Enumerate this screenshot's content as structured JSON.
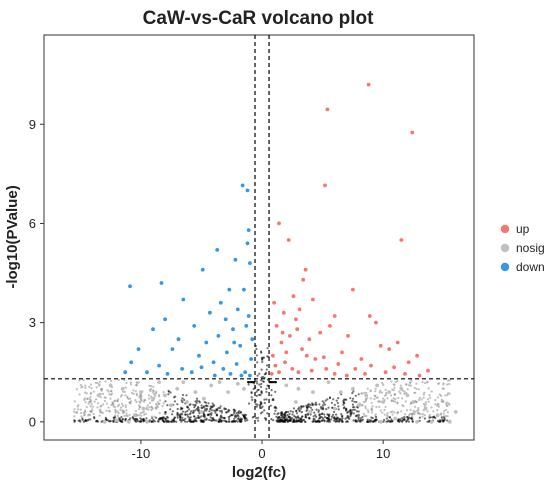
{
  "chart_data": {
    "type": "scatter",
    "title": "CaW-vs-CaR volcano plot",
    "xlabel": "log2(fc)",
    "ylabel": "-log10(PValue)",
    "xlim": [
      -18,
      17.5
    ],
    "ylim": [
      -0.55,
      11.7
    ],
    "xticks": [
      -10,
      0,
      10
    ],
    "yticks": [
      0,
      3,
      6,
      9
    ],
    "grid": false,
    "legend_position": "right",
    "thresholds": {
      "log2fc": [
        -0.58,
        0.58
      ],
      "neg_log10_p": 1.3
    },
    "colors": {
      "up": "#F8766D",
      "nosig": "#C0C0C0",
      "down": "#3399E6",
      "bulk": "#000000"
    },
    "series": [
      {
        "name": "up",
        "color": "#F8766D",
        "points": [
          [
            8.8,
            10.2
          ],
          [
            5.4,
            9.45
          ],
          [
            12.4,
            8.75
          ],
          [
            5.2,
            7.15
          ],
          [
            11.5,
            5.5
          ],
          [
            1.4,
            6.0
          ],
          [
            2.2,
            5.5
          ],
          [
            3.6,
            4.6
          ],
          [
            3.4,
            4.3
          ],
          [
            7.5,
            4.0
          ],
          [
            2.6,
            3.8
          ],
          [
            4.2,
            3.7
          ],
          [
            8.9,
            3.2
          ],
          [
            9.4,
            3.0
          ],
          [
            3.1,
            3.4
          ],
          [
            2.8,
            3.1
          ],
          [
            1.8,
            3.3
          ],
          [
            6.0,
            3.2
          ],
          [
            5.6,
            2.9
          ],
          [
            7.1,
            2.6
          ],
          [
            4.8,
            2.7
          ],
          [
            3.9,
            2.5
          ],
          [
            9.8,
            2.3
          ],
          [
            10.5,
            2.2
          ],
          [
            11.2,
            2.4
          ],
          [
            6.6,
            2.1
          ],
          [
            5.1,
            1.95
          ],
          [
            8.2,
            1.9
          ],
          [
            12.1,
            1.8
          ],
          [
            13.7,
            1.55
          ],
          [
            10.9,
            1.65
          ],
          [
            9.0,
            1.7
          ],
          [
            7.7,
            1.6
          ],
          [
            6.3,
            1.75
          ],
          [
            4.4,
            1.9
          ],
          [
            3.3,
            2.2
          ],
          [
            2.3,
            2.6
          ],
          [
            1.6,
            2.4
          ],
          [
            1.2,
            2.9
          ],
          [
            1.0,
            3.6
          ],
          [
            0.9,
            2.0
          ],
          [
            1.1,
            1.7
          ],
          [
            1.9,
            1.8
          ],
          [
            2.5,
            1.6
          ],
          [
            3.0,
            1.5
          ],
          [
            2.0,
            2.1
          ],
          [
            1.4,
            1.5
          ],
          [
            0.8,
            1.45
          ],
          [
            1.7,
            2.7
          ],
          [
            2.9,
            2.8
          ],
          [
            3.7,
            2.0
          ],
          [
            4.1,
            1.55
          ],
          [
            5.3,
            1.6
          ],
          [
            6.0,
            1.45
          ],
          [
            7.0,
            1.4
          ],
          [
            11.8,
            1.45
          ],
          [
            12.8,
            2.0
          ],
          [
            10.2,
            1.5
          ],
          [
            8.5,
            1.45
          ],
          [
            13.0,
            1.4
          ]
        ]
      },
      {
        "name": "nosig",
        "color": "#C0C0C0",
        "points": [
          [
            -13.0,
            0.0
          ],
          [
            -12.0,
            0.05
          ],
          [
            -11.0,
            0.0
          ],
          [
            -10.5,
            0.2
          ],
          [
            -9.5,
            0.0
          ],
          [
            -11.5,
            1.0
          ],
          [
            -12.5,
            1.1
          ],
          [
            -10.0,
            0.9
          ],
          [
            -9.0,
            0.7
          ],
          [
            -8.0,
            0.8
          ],
          [
            -7.5,
            0.5
          ],
          [
            -7.0,
            1.0
          ],
          [
            -6.2,
            0.6
          ],
          [
            -5.5,
            0.9
          ],
          [
            -5.0,
            0.3
          ],
          [
            -4.2,
            1.1
          ],
          [
            -3.5,
            1.2
          ],
          [
            -2.8,
            0.9
          ],
          [
            -2.0,
            1.15
          ],
          [
            -1.5,
            1.0
          ],
          [
            -13.5,
            0.8
          ],
          [
            -8.5,
            1.2
          ],
          [
            -6.5,
            1.2
          ],
          [
            -4.8,
            0.7
          ],
          [
            -9.8,
            0.4
          ],
          [
            2.0,
            1.1
          ],
          [
            3.0,
            1.0
          ],
          [
            4.2,
            0.9
          ],
          [
            5.5,
            1.2
          ],
          [
            6.5,
            0.9
          ],
          [
            7.5,
            1.0
          ],
          [
            8.6,
            0.8
          ],
          [
            9.5,
            1.1
          ],
          [
            10.5,
            0.9
          ],
          [
            11.5,
            1.0
          ],
          [
            12.5,
            0.6
          ],
          [
            13.5,
            0.4
          ],
          [
            14.5,
            0.2
          ],
          [
            15.5,
            0.0
          ],
          [
            14.0,
            0.0
          ],
          [
            12.8,
            0.0
          ],
          [
            11.0,
            0.1
          ],
          [
            9.8,
            0.0
          ],
          [
            16.0,
            0.3
          ],
          [
            12.0,
            0.8
          ],
          [
            10.0,
            0.6
          ],
          [
            8.0,
            0.5
          ],
          [
            6.0,
            0.4
          ],
          [
            4.0,
            0.3
          ],
          [
            2.8,
            0.6
          ]
        ]
      },
      {
        "name": "down",
        "color": "#3399E6",
        "points": [
          [
            -1.6,
            7.15
          ],
          [
            -1.2,
            7.0
          ],
          [
            -1.1,
            5.8
          ],
          [
            -1.2,
            5.4
          ],
          [
            -3.7,
            5.2
          ],
          [
            -2.2,
            4.9
          ],
          [
            -4.9,
            4.6
          ],
          [
            -1.0,
            4.8
          ],
          [
            -2.7,
            4.0
          ],
          [
            -3.4,
            3.6
          ],
          [
            -1.5,
            4.0
          ],
          [
            -6.5,
            3.7
          ],
          [
            -10.9,
            4.1
          ],
          [
            -8.3,
            4.2
          ],
          [
            -2.0,
            3.4
          ],
          [
            -3.0,
            3.1
          ],
          [
            -4.3,
            3.3
          ],
          [
            -5.6,
            2.9
          ],
          [
            -2.4,
            2.8
          ],
          [
            -1.3,
            2.9
          ],
          [
            -6.9,
            2.5
          ],
          [
            -4.6,
            2.4
          ],
          [
            -3.6,
            2.6
          ],
          [
            -8.0,
            3.1
          ],
          [
            -9.0,
            2.8
          ],
          [
            -10.2,
            2.2
          ],
          [
            -7.4,
            2.2
          ],
          [
            -5.2,
            2.0
          ],
          [
            -2.9,
            2.1
          ],
          [
            -1.8,
            2.3
          ],
          [
            -4.0,
            1.8
          ],
          [
            -3.2,
            1.6
          ],
          [
            -2.1,
            1.75
          ],
          [
            -1.4,
            1.5
          ],
          [
            -0.9,
            1.9
          ],
          [
            -0.8,
            2.5
          ],
          [
            -1.1,
            3.2
          ],
          [
            -1.7,
            1.4
          ],
          [
            -2.6,
            1.45
          ],
          [
            -3.9,
            1.4
          ],
          [
            -5.8,
            1.5
          ],
          [
            -6.6,
            1.6
          ],
          [
            -8.5,
            1.7
          ],
          [
            -9.5,
            1.5
          ],
          [
            -11.3,
            1.5
          ],
          [
            -10.8,
            1.8
          ],
          [
            -5.0,
            1.65
          ],
          [
            -2.3,
            2.4
          ],
          [
            -1.0,
            1.4
          ],
          [
            -7.8,
            1.45
          ]
        ]
      }
    ]
  }
}
